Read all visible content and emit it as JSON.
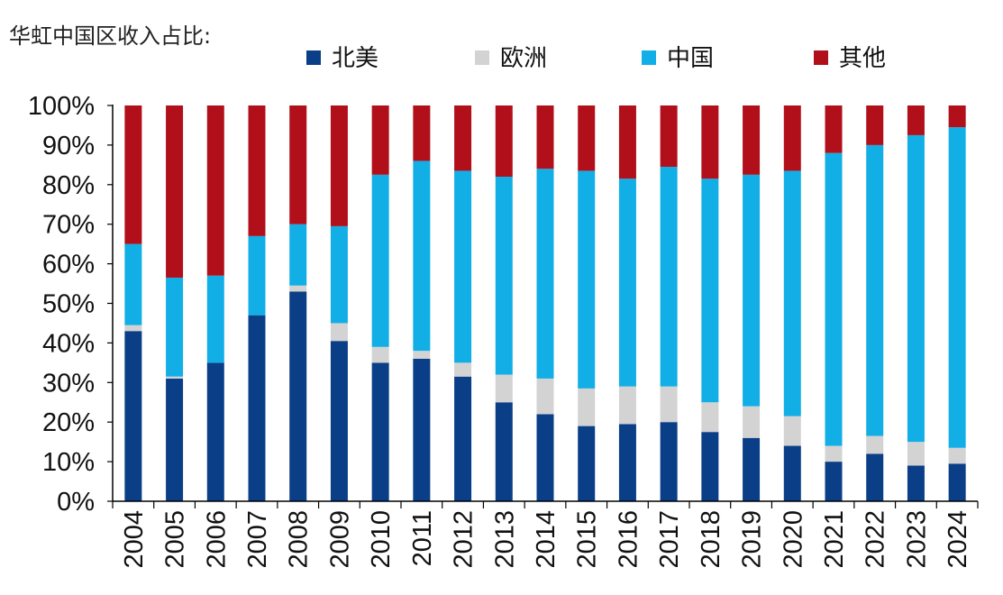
{
  "caption": "华虹中国区收入占比:",
  "chart_data": {
    "type": "bar",
    "stacked": true,
    "categories": [
      "2004",
      "2005",
      "2006",
      "2007",
      "2008",
      "2009",
      "2010",
      "2011",
      "2012",
      "2013",
      "2014",
      "2015",
      "2016",
      "2017",
      "2018",
      "2019",
      "2020",
      "2021",
      "2022",
      "2023",
      "2024"
    ],
    "ylim": [
      0,
      100
    ],
    "yticks": [
      "0%",
      "10%",
      "20%",
      "30%",
      "40%",
      "50%",
      "60%",
      "70%",
      "80%",
      "90%",
      "100%"
    ],
    "legend_position": "top",
    "series": [
      {
        "name": "北美",
        "color": "#0a3e86",
        "values": [
          43,
          31,
          35,
          47,
          53,
          40.5,
          35,
          36,
          31.5,
          25,
          22,
          19,
          19.5,
          20,
          17.5,
          16,
          14,
          10,
          12,
          9,
          9.5
        ]
      },
      {
        "name": "欧洲",
        "color": "#d3d3d3",
        "values": [
          1.5,
          0.5,
          0,
          0,
          1.5,
          4.5,
          4,
          2,
          3.5,
          7,
          9,
          9.5,
          9.5,
          9,
          7.5,
          8,
          7.5,
          4,
          4.5,
          6,
          4
        ]
      },
      {
        "name": "中国",
        "color": "#12aee6",
        "values": [
          20.5,
          25,
          22,
          20,
          15.5,
          24.5,
          43.5,
          48,
          48.5,
          50,
          53,
          55,
          52.5,
          55.5,
          56.5,
          58.5,
          62,
          74,
          73.5,
          77.5,
          81
        ]
      },
      {
        "name": "其他",
        "color": "#b10f1a",
        "values": [
          35,
          43.5,
          43,
          33,
          30,
          30.5,
          17.5,
          14,
          16.5,
          18,
          16,
          16.5,
          18.5,
          15.5,
          18.5,
          17.5,
          16.5,
          12,
          10,
          7.5,
          5.5
        ]
      }
    ]
  }
}
